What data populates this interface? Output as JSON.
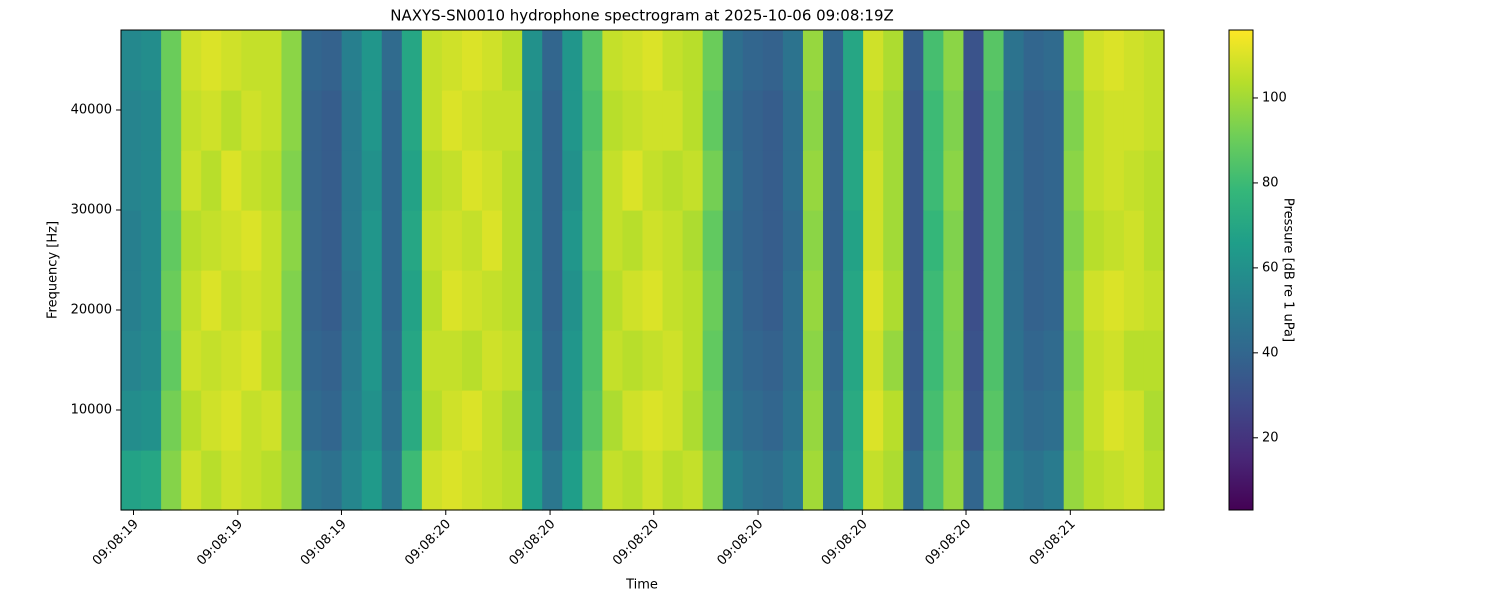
{
  "chart_data": {
    "type": "heatmap",
    "title": "NAXYS-SN0010 hydrophone spectrogram at 2025-10-06 09:08:19Z",
    "x_label": "Time",
    "y_label": "Frequency [Hz]",
    "colorbar_label": "Pressure [dB re 1 uPa]",
    "colormap": "viridis",
    "xlim": [
      19.48,
      21.15
    ],
    "xticks": [
      {
        "value": 19.5,
        "label": "09:08:19"
      },
      {
        "value": 19.667,
        "label": "09:08:19"
      },
      {
        "value": 19.833,
        "label": "09:08:19"
      },
      {
        "value": 20.0,
        "label": "09:08:20"
      },
      {
        "value": 20.167,
        "label": "09:08:20"
      },
      {
        "value": 20.333,
        "label": "09:08:20"
      },
      {
        "value": 20.5,
        "label": "09:08:20"
      },
      {
        "value": 20.667,
        "label": "09:08:20"
      },
      {
        "value": 20.833,
        "label": "09:08:20"
      },
      {
        "value": 21.0,
        "label": "09:08:21"
      }
    ],
    "ylim": [
      0,
      48000
    ],
    "yticks": [
      10000,
      20000,
      30000,
      40000
    ],
    "clim": [
      3,
      116
    ],
    "cticks": [
      20,
      40,
      60,
      80,
      100
    ],
    "values": [
      [
        68,
        70,
        95,
        108,
        104,
        108,
        106,
        104,
        98,
        48,
        45,
        55,
        64,
        48,
        80,
        108,
        110,
        108,
        106,
        104,
        66,
        48,
        66,
        90,
        106,
        104,
        108,
        104,
        106,
        94,
        52,
        46,
        44,
        50,
        100,
        46,
        74,
        106,
        102,
        42,
        84,
        98,
        40,
        88,
        50,
        46,
        50,
        98,
        104,
        106,
        108,
        104
      ],
      [
        58,
        60,
        92,
        104,
        108,
        110,
        106,
        108,
        96,
        42,
        40,
        52,
        60,
        44,
        72,
        104,
        108,
        110,
        106,
        102,
        62,
        42,
        62,
        86,
        102,
        108,
        110,
        108,
        102,
        90,
        46,
        42,
        40,
        46,
        98,
        42,
        72,
        110,
        104,
        36,
        82,
        96,
        34,
        86,
        46,
        42,
        44,
        96,
        106,
        110,
        108,
        102
      ],
      [
        54,
        57,
        88,
        108,
        106,
        108,
        110,
        104,
        94,
        40,
        38,
        50,
        62,
        42,
        70,
        106,
        106,
        104,
        108,
        106,
        60,
        40,
        62,
        84,
        106,
        104,
        106,
        108,
        104,
        88,
        44,
        40,
        38,
        44,
        96,
        40,
        70,
        108,
        98,
        35,
        80,
        94,
        32,
        84,
        45,
        40,
        42,
        94,
        106,
        108,
        104,
        104
      ],
      [
        52,
        56,
        90,
        106,
        110,
        106,
        108,
        106,
        94,
        38,
        36,
        48,
        62,
        40,
        68,
        104,
        110,
        108,
        106,
        104,
        58,
        38,
        60,
        84,
        104,
        108,
        110,
        106,
        104,
        90,
        44,
        38,
        36,
        44,
        98,
        38,
        70,
        110,
        102,
        34,
        80,
        95,
        30,
        84,
        44,
        38,
        40,
        96,
        108,
        110,
        108,
        106
      ],
      [
        52,
        56,
        88,
        104,
        106,
        108,
        110,
        106,
        96,
        38,
        36,
        50,
        62,
        40,
        70,
        106,
        108,
        106,
        110,
        104,
        58,
        38,
        62,
        86,
        106,
        104,
        108,
        106,
        102,
        88,
        42,
        38,
        36,
        42,
        96,
        38,
        68,
        108,
        100,
        34,
        78,
        94,
        30,
        84,
        44,
        38,
        40,
        94,
        104,
        106,
        108,
        104
      ],
      [
        54,
        56,
        90,
        108,
        104,
        110,
        106,
        104,
        94,
        38,
        36,
        50,
        60,
        40,
        68,
        104,
        106,
        110,
        108,
        104,
        58,
        38,
        60,
        86,
        106,
        110,
        106,
        104,
        106,
        92,
        44,
        38,
        36,
        44,
        98,
        38,
        70,
        108,
        100,
        34,
        80,
        96,
        30,
        84,
        44,
        38,
        40,
        96,
        106,
        108,
        106,
        104
      ],
      [
        54,
        56,
        90,
        106,
        108,
        104,
        108,
        106,
        96,
        38,
        36,
        50,
        62,
        40,
        70,
        106,
        110,
        108,
        106,
        106,
        58,
        38,
        62,
        84,
        104,
        106,
        108,
        108,
        104,
        88,
        42,
        38,
        36,
        44,
        96,
        38,
        70,
        106,
        100,
        34,
        80,
        94,
        30,
        84,
        44,
        38,
        40,
        94,
        106,
        108,
        108,
        106
      ],
      [
        56,
        58,
        90,
        108,
        110,
        108,
        106,
        106,
        96,
        40,
        38,
        52,
        62,
        42,
        70,
        106,
        108,
        110,
        108,
        104,
        60,
        40,
        62,
        86,
        106,
        108,
        110,
        106,
        104,
        90,
        44,
        40,
        38,
        46,
        98,
        40,
        70,
        108,
        102,
        36,
        82,
        96,
        32,
        86,
        46,
        40,
        42,
        96,
        108,
        110,
        108,
        106
      ]
    ]
  }
}
